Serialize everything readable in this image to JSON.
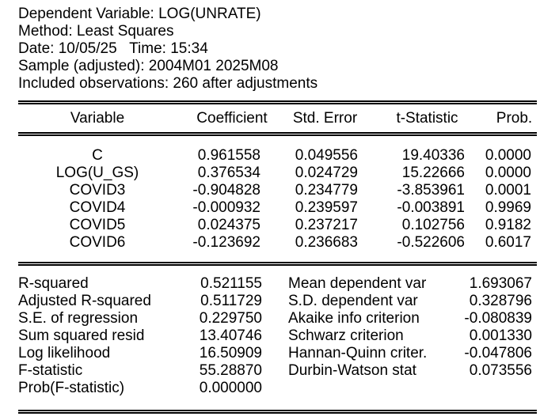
{
  "header": {
    "dependent_variable": "Dependent Variable: LOG(UNRATE)",
    "method": "Method: Least Squares",
    "date_time": "Date: 10/05/25   Time: 15:34",
    "sample": "Sample (adjusted): 2004M01 2025M08",
    "observations": "Included observations: 260 after adjustments"
  },
  "coef_table": {
    "columns": [
      "Variable",
      "Coefficient",
      "Std. Error",
      "t-Statistic",
      "Prob."
    ],
    "rows": [
      {
        "variable": "C",
        "coefficient": "0.961558",
        "std_error": "0.049556",
        "t_statistic": "19.40336",
        "prob": "0.0000"
      },
      {
        "variable": "LOG(U_GS)",
        "coefficient": "0.376534",
        "std_error": "0.024729",
        "t_statistic": "15.22666",
        "prob": "0.0000"
      },
      {
        "variable": "COVID3",
        "coefficient": "-0.904828",
        "std_error": "0.234779",
        "t_statistic": "-3.853961",
        "prob": "0.0001"
      },
      {
        "variable": "COVID4",
        "coefficient": "-0.000932",
        "std_error": "0.239597",
        "t_statistic": "-0.003891",
        "prob": "0.9969"
      },
      {
        "variable": "COVID5",
        "coefficient": "0.024375",
        "std_error": "0.237217",
        "t_statistic": "0.102756",
        "prob": "0.9182"
      },
      {
        "variable": "COVID6",
        "coefficient": "-0.123692",
        "std_error": "0.236683",
        "t_statistic": "-0.522606",
        "prob": "0.6017"
      }
    ]
  },
  "summary": {
    "left": [
      {
        "label": "R-squared",
        "value": "0.521155"
      },
      {
        "label": "Adjusted R-squared",
        "value": "0.511729"
      },
      {
        "label": "S.E. of regression",
        "value": "0.229750"
      },
      {
        "label": "Sum squared resid",
        "value": "13.40746"
      },
      {
        "label": "Log likelihood",
        "value": "16.50909"
      },
      {
        "label": "F-statistic",
        "value": "55.28870"
      },
      {
        "label": "Prob(F-statistic)",
        "value": "0.000000"
      }
    ],
    "right": [
      {
        "label": "Mean dependent var",
        "value": "1.693067"
      },
      {
        "label": "S.D. dependent var",
        "value": "0.328796"
      },
      {
        "label": "Akaike info criterion",
        "value": "-0.080839"
      },
      {
        "label": "Schwarz criterion",
        "value": "0.001330"
      },
      {
        "label": "Hannan-Quinn criter.",
        "value": "-0.047806"
      },
      {
        "label": "Durbin-Watson stat",
        "value": "0.073556"
      }
    ]
  },
  "colors": {
    "text": "#000000",
    "background": "#ffffff",
    "rule": "#000000"
  }
}
